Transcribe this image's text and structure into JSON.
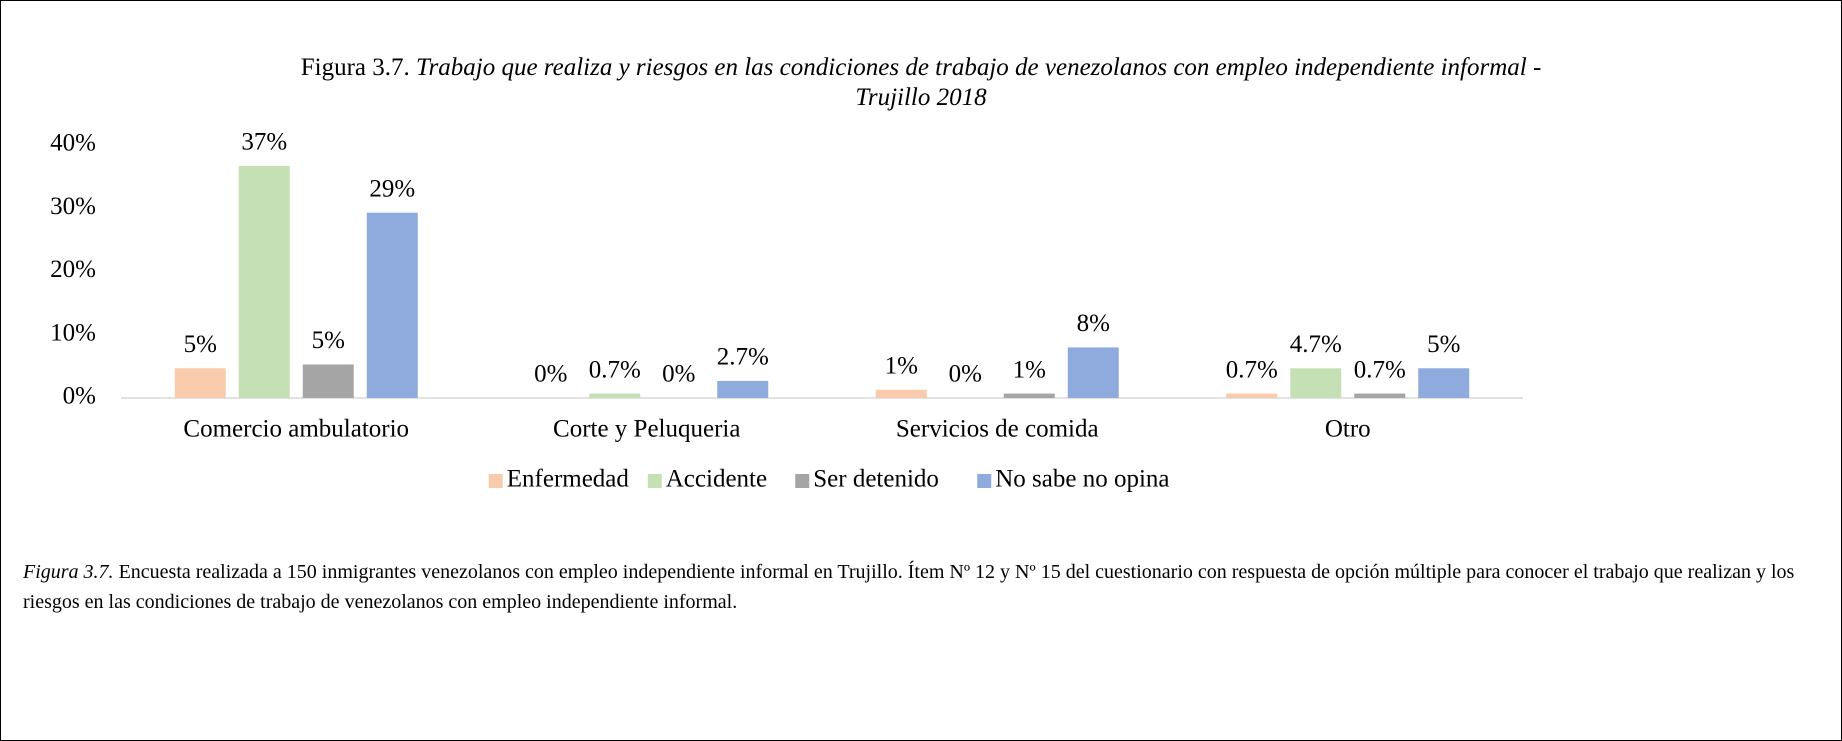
{
  "chart_data": {
    "type": "bar",
    "title_label": "Figura 3.7.",
    "title": "Trabajo que realiza y riesgos en las condiciones de trabajo de venezolanos con empleo independiente informal - Trujillo 2018",
    "categories": [
      "Comercio ambulatorio",
      "Corte y Peluqueria",
      "Servicios de comida",
      "Otro"
    ],
    "series": [
      {
        "name": "Enfermedad",
        "color": "#f8cbad",
        "values": [
          4.7,
          0,
          1.3,
          0.7
        ],
        "value_labels": [
          "5%",
          "0%",
          "1%",
          "0.7%"
        ]
      },
      {
        "name": "Accidente",
        "color": "#c5e0b4",
        "values": [
          36.7,
          0.7,
          0,
          4.7
        ],
        "value_labels": [
          "37%",
          "0.7%",
          "0%",
          "4.7%"
        ]
      },
      {
        "name": "Ser detenido",
        "color": "#a5a5a5",
        "values": [
          5.3,
          0,
          0.7,
          0.7
        ],
        "value_labels": [
          "5%",
          "0%",
          "1%",
          "0.7%"
        ]
      },
      {
        "name": "No sabe no opina",
        "color": "#8faadc",
        "values": [
          29.3,
          2.7,
          8,
          4.7
        ],
        "value_labels": [
          "29%",
          "2.7%",
          "8%",
          "5%"
        ]
      }
    ],
    "ylim": [
      0,
      40
    ],
    "yticks": [
      {
        "value": 0,
        "label": "0%"
      },
      {
        "value": 10,
        "label": "10%"
      },
      {
        "value": 20,
        "label": "20%"
      },
      {
        "value": 30,
        "label": "30%"
      },
      {
        "value": 40,
        "label": "40%"
      }
    ],
    "grid": false,
    "legend": "bottom"
  },
  "caption": {
    "label": "Figura 3.7.",
    "text": "Encuesta realizada a 150 inmigrantes venezolanos con empleo independiente informal en Trujillo. Ítem Nº 12 y Nº 15 del cuestionario con respuesta de opción múltiple para conocer el trabajo que realizan y los riesgos en las condiciones de trabajo de venezolanos con empleo independiente informal."
  }
}
